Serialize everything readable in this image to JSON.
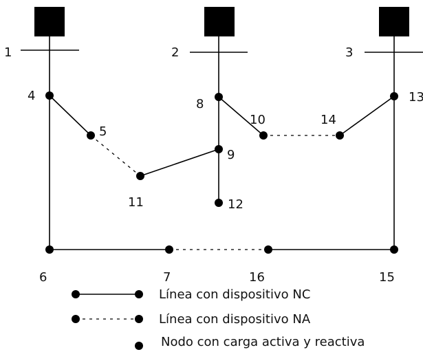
{
  "sources": [
    {
      "id": "1",
      "label": "1"
    },
    {
      "id": "2",
      "label": "2"
    },
    {
      "id": "3",
      "label": "3"
    }
  ],
  "nodes": [
    {
      "id": "4",
      "label": "4"
    },
    {
      "id": "5",
      "label": "5"
    },
    {
      "id": "6",
      "label": "6"
    },
    {
      "id": "7",
      "label": "7"
    },
    {
      "id": "8",
      "label": "8"
    },
    {
      "id": "9",
      "label": "9"
    },
    {
      "id": "10",
      "label": "10"
    },
    {
      "id": "11",
      "label": "11"
    },
    {
      "id": "12",
      "label": "12"
    },
    {
      "id": "13",
      "label": "13"
    },
    {
      "id": "14",
      "label": "14"
    },
    {
      "id": "15",
      "label": "15"
    },
    {
      "id": "16",
      "label": "16"
    }
  ],
  "edges": [
    {
      "from": "1",
      "to": "4",
      "type": "feeder"
    },
    {
      "from": "2",
      "to": "8",
      "type": "feeder"
    },
    {
      "from": "3",
      "to": "13",
      "type": "feeder"
    },
    {
      "from": "4",
      "to": "5",
      "type": "NC"
    },
    {
      "from": "5",
      "to": "11",
      "type": "NA"
    },
    {
      "from": "11",
      "to": "9",
      "type": "NC"
    },
    {
      "from": "8",
      "to": "9",
      "type": "NC"
    },
    {
      "from": "9",
      "to": "12",
      "type": "NC"
    },
    {
      "from": "8",
      "to": "10",
      "type": "NC"
    },
    {
      "from": "10",
      "to": "14",
      "type": "NA"
    },
    {
      "from": "14",
      "to": "13",
      "type": "NC"
    },
    {
      "from": "4",
      "to": "6",
      "type": "NC"
    },
    {
      "from": "6",
      "to": "7",
      "type": "NC"
    },
    {
      "from": "7",
      "to": "16",
      "type": "NA"
    },
    {
      "from": "16",
      "to": "15",
      "type": "NC"
    },
    {
      "from": "13",
      "to": "15",
      "type": "NC"
    }
  ],
  "legend": {
    "nc_label": "Línea con dispositivo NC",
    "na_label": "Línea con dispositivo NA",
    "node_label": "Nodo con carga activa y reactiva"
  }
}
